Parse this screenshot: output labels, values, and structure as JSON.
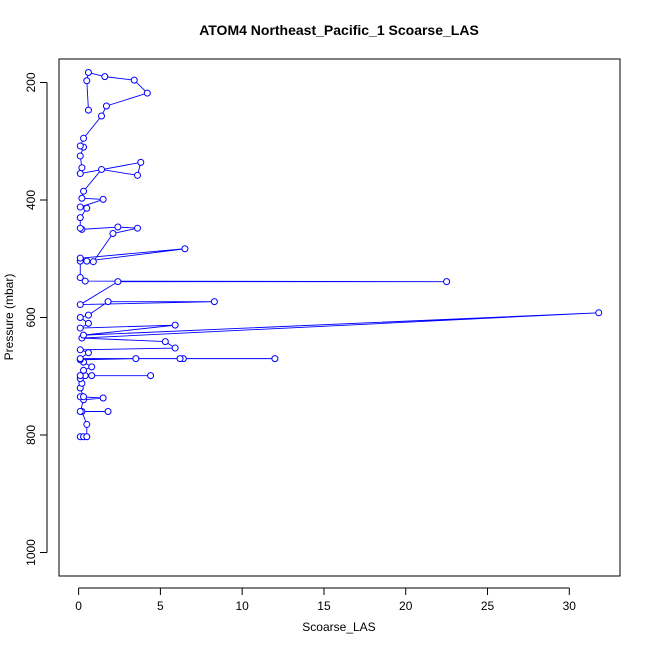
{
  "chart_data": {
    "type": "line",
    "title": "ATOM4 Northeast_Pacific_1 Scoarse_LAS",
    "xlabel": "Scoarse_LAS",
    "ylabel": "Pressure (mbar)",
    "xlim": [
      -1.2,
      33.1
    ],
    "ylim": [
      1040,
      160
    ],
    "y_inverted": true,
    "xticks": [
      0,
      5,
      10,
      15,
      20,
      25,
      30
    ],
    "yticks": [
      200,
      400,
      600,
      800,
      1000
    ],
    "grid": false,
    "legend": "none",
    "series": [
      {
        "color": "#0000ff",
        "marker": "open-circle",
        "points": [
          [
            0.1,
            803
          ],
          [
            0.3,
            803
          ],
          [
            0.5,
            803
          ],
          [
            0.5,
            782
          ],
          [
            0.2,
            760
          ],
          [
            1.8,
            760
          ],
          [
            0.1,
            760
          ],
          [
            0.3,
            740
          ],
          [
            1.5,
            737
          ],
          [
            0.1,
            735
          ],
          [
            0.3,
            735
          ],
          [
            0.1,
            720
          ],
          [
            0.2,
            712
          ],
          [
            0.1,
            704
          ],
          [
            0.4,
            699
          ],
          [
            4.4,
            699
          ],
          [
            0.8,
            699
          ],
          [
            0.1,
            699
          ],
          [
            0.3,
            690
          ],
          [
            0.8,
            684
          ],
          [
            0.3,
            676
          ],
          [
            0.1,
            672
          ],
          [
            3.5,
            670
          ],
          [
            12.0,
            670
          ],
          [
            6.4,
            670
          ],
          [
            6.2,
            670
          ],
          [
            0.1,
            670
          ],
          [
            0.6,
            660
          ],
          [
            0.1,
            655
          ],
          [
            5.9,
            652
          ],
          [
            5.3,
            641
          ],
          [
            0.2,
            635
          ],
          [
            31.8,
            592
          ],
          [
            0.3,
            630
          ],
          [
            5.9,
            613
          ],
          [
            0.1,
            618
          ],
          [
            0.6,
            610
          ],
          [
            0.1,
            600
          ],
          [
            0.6,
            596
          ],
          [
            1.8,
            573
          ],
          [
            8.3,
            573
          ],
          [
            0.1,
            578
          ],
          [
            2.4,
            539
          ],
          [
            22.5,
            539
          ],
          [
            0.4,
            538
          ],
          [
            0.1,
            532
          ],
          [
            0.1,
            504
          ],
          [
            0.5,
            504
          ],
          [
            6.5,
            483
          ],
          [
            0.1,
            499
          ],
          [
            0.9,
            505
          ],
          [
            2.1,
            457
          ],
          [
            3.6,
            448
          ],
          [
            2.4,
            446
          ],
          [
            0.2,
            450
          ],
          [
            0.1,
            448
          ],
          [
            0.1,
            430
          ],
          [
            0.5,
            414
          ],
          [
            0.1,
            412
          ],
          [
            1.5,
            399
          ],
          [
            0.2,
            397
          ],
          [
            0.3,
            385
          ],
          [
            1.4,
            348
          ],
          [
            3.6,
            358
          ],
          [
            3.8,
            336
          ],
          [
            0.1,
            355
          ],
          [
            0.2,
            345
          ],
          [
            0.1,
            325
          ],
          [
            0.3,
            310
          ],
          [
            0.1,
            308
          ],
          [
            0.3,
            295
          ],
          [
            1.4,
            257
          ],
          [
            1.7,
            240
          ],
          [
            4.2,
            218
          ],
          [
            3.4,
            196
          ],
          [
            1.6,
            190
          ],
          [
            0.6,
            183
          ],
          [
            0.5,
            197
          ],
          [
            0.6,
            247
          ]
        ]
      }
    ]
  }
}
